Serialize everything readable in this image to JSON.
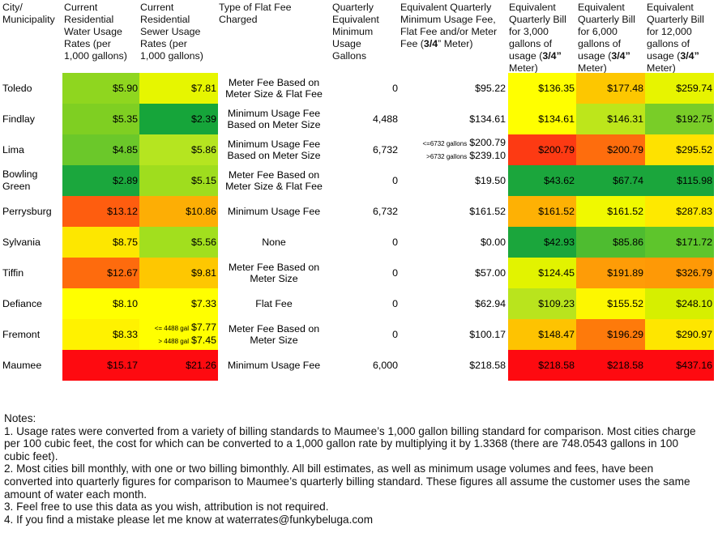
{
  "headers": {
    "city": "City/\nMunicipality",
    "water": "Current\nResidential\nWater Usage\nRates (per\n1,000 gallons)",
    "sewer": "Current\nResidential\nSewer Usage\nRates (per\n1,000 gallons)",
    "fee_type": "Type of Flat Fee\nCharged",
    "min_gallons": "Quarterly\nEquivalent\nMinimum\nUsage\nGallons",
    "min_fee_pre": "Equivalent Quarterly\nMinimum Usage Fee,\nFlat Fee and/or Meter\nFee (",
    "min_fee_bold": "3/4",
    "min_fee_post": "” Meter)",
    "bill3000_pre": "Equivalent\nQuarterly Bill\nfor 3,000\ngallons of\nusage (",
    "bill6000_pre": "Equivalent\nQuarterly Bill\nfor 6,000\ngallons of\nusage (",
    "bill12000_pre": "Equivalent\nQuarterly Bill\nfor 12,000\ngallons of\nusage (",
    "bill_bold": "3/4”",
    "bill_post": "\nMeter)"
  },
  "rows": [
    {
      "city": "Toledo",
      "water": "$5.90",
      "sewer": "$7.81",
      "fee_type": "Meter Fee Based on Meter Size & Flat Fee",
      "min_gallons": "0",
      "min_fee": "$95.22",
      "bill3000": "$136.35",
      "bill6000": "$177.48",
      "bill12000": "$259.74",
      "colors": {
        "water": "#8fd61f",
        "sewer": "#e6f600",
        "bill3000": "#ffff00",
        "bill6000": "#fdc700",
        "bill12000": "#e7f400"
      }
    },
    {
      "city": "Findlay",
      "water": "$5.35",
      "sewer": "$2.39",
      "fee_type": "Minimum Usage Fee Based on Meter Size",
      "min_gallons": "4,488",
      "min_fee": "$134.61",
      "bill3000": "$134.61",
      "bill6000": "$146.31",
      "bill12000": "$192.75",
      "colors": {
        "water": "#7fcf22",
        "sewer": "#16a53a",
        "bill3000": "#ffff00",
        "bill6000": "#bde61b",
        "bill12000": "#79cd28"
      }
    },
    {
      "city": "Lima",
      "water": "$4.85",
      "sewer": "$5.86",
      "fee_type": "Minimum Usage Fee Based on Meter Size",
      "min_gallons": "6,732",
      "min_fee_split": [
        {
          "label": "<=6732 gallons",
          "value": "$200.79"
        },
        {
          "label": ">6732 gallons",
          "value": "$239.10"
        }
      ],
      "bill3000": "$200.79",
      "bill6000": "$200.79",
      "bill12000": "$295.52",
      "colors": {
        "water": "#6bc82a",
        "sewer": "#b5e520",
        "bill3000": "#fd3a13",
        "bill6000": "#fe6d0d",
        "bill12000": "#fee200"
      }
    },
    {
      "city": "Bowling Green",
      "water": "$2.89",
      "sewer": "$5.15",
      "fee_type": "Meter Fee Based on Meter Size & Flat Fee",
      "min_gallons": "0",
      "min_fee": "$19.50",
      "bill3000": "$43.62",
      "bill6000": "$67.74",
      "bill12000": "$115.98",
      "colors": {
        "water": "#1ba73d",
        "sewer": "#9fdd1e",
        "bill3000": "#1ba63c",
        "bill6000": "#1ba63c",
        "bill12000": "#1ba63c"
      }
    },
    {
      "city": "Perrysburg",
      "water": "$13.12",
      "sewer": "$10.86",
      "fee_type": "Minimum Usage Fee",
      "min_gallons": "6,732",
      "min_fee": "$161.52",
      "bill3000": "$161.52",
      "bill6000": "$161.52",
      "bill12000": "$287.83",
      "colors": {
        "water": "#fe5d0f",
        "sewer": "#fdae05",
        "bill3000": "#feb104",
        "bill6000": "#f0f900",
        "bill12000": "#fee900"
      }
    },
    {
      "city": "Sylvania",
      "water": "$8.75",
      "sewer": "$5.56",
      "fee_type": "None",
      "min_gallons": "0",
      "min_fee": "$0.00",
      "bill3000": "$42.93",
      "bill6000": "$85.86",
      "bill12000": "$171.72",
      "colors": {
        "water": "#fde700",
        "sewer": "#a2df1e",
        "bill3000": "#1ba63c",
        "bill6000": "#4ebc30",
        "bill12000": "#5ec52c"
      }
    },
    {
      "city": "Tiffin",
      "water": "$12.67",
      "sewer": "$9.81",
      "fee_type": "Meter Fee Based on Meter Size",
      "min_gallons": "0",
      "min_fee": "$57.00",
      "bill3000": "$124.45",
      "bill6000": "$191.89",
      "bill12000": "$326.79",
      "colors": {
        "water": "#fe6b0d",
        "sewer": "#fec701",
        "bill3000": "#e2f300",
        "bill6000": "#fe9c07",
        "bill12000": "#fe9906"
      }
    },
    {
      "city": "Defiance",
      "water": "$8.10",
      "sewer": "$7.33",
      "fee_type": "Flat Fee",
      "min_gallons": "0",
      "min_fee": "$62.94",
      "bill3000": "$109.23",
      "bill6000": "$155.52",
      "bill12000": "$248.10",
      "colors": {
        "water": "#ffff00",
        "sewer": "#ffff00",
        "bill3000": "#b9e41d",
        "bill6000": "#fdf700",
        "bill12000": "#d6ef00"
      }
    },
    {
      "city": "Fremont",
      "water": "$8.33",
      "sewer_split": [
        {
          "label": "<= 4488 gal",
          "value": "$7.77"
        },
        {
          "label": "> 4488 gal",
          "value": "$7.45"
        }
      ],
      "fee_type": "Meter Fee Based on Meter Size",
      "min_gallons": "0",
      "min_fee": "$100.17",
      "bill3000": "$148.47",
      "bill6000": "$196.29",
      "bill12000": "$290.97",
      "colors": {
        "water": "#fff200",
        "sewer": "#ffff00",
        "bill3000": "#fec301",
        "bill6000": "#fe7a0b",
        "bill12000": "#fee600"
      }
    },
    {
      "city": "Maumee",
      "water": "$15.17",
      "sewer": "$21.26",
      "fee_type": "Minimum Usage Fee",
      "min_gallons": "6,000",
      "min_fee": "$218.58",
      "bill3000": "$218.58",
      "bill6000": "$218.58",
      "bill12000": "$437.16",
      "colors": {
        "water": "#fe0a10",
        "sewer": "#fe0a10",
        "bill3000": "#fe0a10",
        "bill6000": "#fe0a10",
        "bill12000": "#fe0a10"
      }
    }
  ],
  "notes": {
    "title": "Notes:",
    "items": [
      "1. Usage rates were converted from a variety of billing standards to Maumee’s 1,000 gallon billing standard for comparison. Most cities charge per 100 cubic feet, the cost for which can be converted to a 1,000 gallon rate by multiplying it by 1.3368 (there are 748.0543 gallons in 100 cubic feet).",
      "2. Most cities bill monthly, with one or two billing bimonthly. All bill estimates, as well as minimum usage volumes and fees, have been converted into quarterly figures for comparison to Maumee’s quarterly billing standard. These figures all assume the customer uses the same amount of water each month.",
      "3. Feel free to use this data as you wish, attribution is not required.",
      "4. If you find a mistake please let me know at waterrates@funkybeluga.com"
    ]
  }
}
